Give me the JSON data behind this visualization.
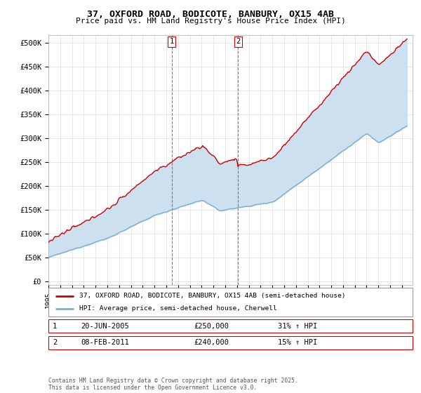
{
  "title1": "37, OXFORD ROAD, BODICOTE, BANBURY, OX15 4AB",
  "title2": "Price paid vs. HM Land Registry's House Price Index (HPI)",
  "yticks": [
    0,
    50000,
    100000,
    150000,
    200000,
    250000,
    300000,
    350000,
    400000,
    450000,
    500000
  ],
  "ytick_labels": [
    "£0",
    "£50K",
    "£100K",
    "£150K",
    "£200K",
    "£250K",
    "£300K",
    "£350K",
    "£400K",
    "£450K",
    "£500K"
  ],
  "ylim": [
    -8000,
    515000
  ],
  "xlim_start": 1995.0,
  "xlim_end": 2025.9,
  "transaction1_year": 2005.46,
  "transaction1_date": "20-JUN-2005",
  "transaction1_price": 250000,
  "transaction1_hpi": "31%",
  "transaction2_year": 2011.1,
  "transaction2_date": "08-FEB-2011",
  "transaction2_price": 240000,
  "transaction2_hpi": "15%",
  "legend_line1": "37, OXFORD ROAD, BODICOTE, BANBURY, OX15 4AB (semi-detached house)",
  "legend_line2": "HPI: Average price, semi-detached house, Cherwell",
  "footnote": "Contains HM Land Registry data © Crown copyright and database right 2025.\nThis data is licensed under the Open Government Licence v3.0.",
  "line_color_red": "#cc0000",
  "line_color_blue": "#7aadcf",
  "shading_color": "#cce0f0",
  "background_color": "#ffffff",
  "grid_color": "#dddddd"
}
